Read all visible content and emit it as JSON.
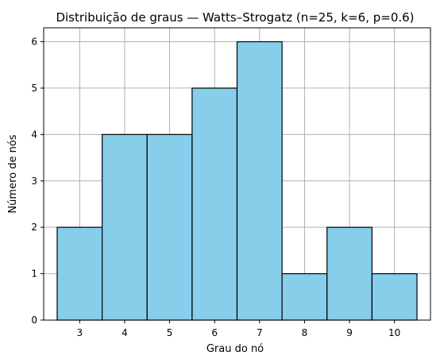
{
  "chart_data": {
    "type": "bar",
    "title": "Distribuição de graus — Watts–Strogatz (n=25, k=6, p=0.6)",
    "xlabel": "Grau do nó",
    "ylabel": "Número de nós",
    "categories": [
      "3",
      "4",
      "5",
      "6",
      "7",
      "8",
      "9",
      "10"
    ],
    "values": [
      2,
      4,
      4,
      5,
      6,
      1,
      2,
      1
    ],
    "xlim": [
      2.2,
      10.8
    ],
    "ylim": [
      0,
      6.3
    ],
    "yticks": [
      0,
      1,
      2,
      3,
      4,
      5,
      6
    ],
    "grid": true,
    "bar_color": "#87ceeb",
    "edge_color": "#000000"
  }
}
